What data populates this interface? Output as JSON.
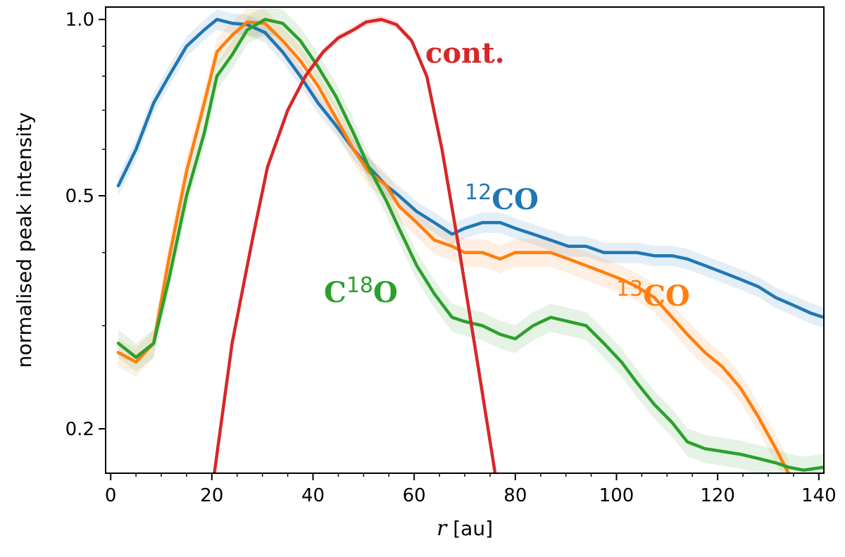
{
  "chart_data": {
    "type": "line",
    "title": "",
    "xlabel_var": "r",
    "xlabel_unit": " [au]",
    "ylabel": "normalised peak intensity",
    "xlim": [
      -1,
      141
    ],
    "ylim": [
      0.168,
      1.05
    ],
    "yscale": "log",
    "x_ticks": [
      0,
      20,
      40,
      60,
      80,
      100,
      120,
      140
    ],
    "x_tick_labels": [
      "0",
      "20",
      "40",
      "60",
      "80",
      "100",
      "120",
      "140"
    ],
    "y_ticks": [
      1.0,
      0.5,
      0.2
    ],
    "y_tick_labels": [
      "1.0",
      "0.5",
      "0.2"
    ],
    "y_minor_ticks": [
      0.9,
      0.8,
      0.7,
      0.6,
      0.4,
      0.3
    ],
    "grid": false,
    "series": [
      {
        "name": "12CO",
        "label_sup": "12",
        "label_main": "CO",
        "color": "#1f77b4",
        "band_width": 0.04,
        "x": [
          1.5,
          5,
          8.5,
          11.5,
          15,
          18.5,
          21,
          24,
          27,
          30.5,
          34,
          37.5,
          41,
          44.5,
          48,
          51,
          54.5,
          57,
          60.5,
          64,
          67.5,
          70,
          73.5,
          77,
          80,
          83.5,
          87,
          90.5,
          94,
          97.5,
          101,
          104,
          107.5,
          111,
          114,
          117.5,
          121,
          124.5,
          128,
          131.5,
          135,
          138.5,
          141
        ],
        "values": [
          0.52,
          0.6,
          0.72,
          0.8,
          0.9,
          0.96,
          1.0,
          0.985,
          0.98,
          0.95,
          0.88,
          0.8,
          0.72,
          0.66,
          0.6,
          0.56,
          0.52,
          0.5,
          0.47,
          0.45,
          0.43,
          0.44,
          0.45,
          0.45,
          0.44,
          0.43,
          0.42,
          0.41,
          0.41,
          0.4,
          0.4,
          0.4,
          0.395,
          0.395,
          0.39,
          0.38,
          0.37,
          0.36,
          0.35,
          0.335,
          0.325,
          0.315,
          0.31
        ]
      },
      {
        "name": "13CO",
        "label_sup": "13",
        "label_main": "CO",
        "color": "#ff7f0e",
        "band_width": 0.055,
        "x": [
          1.5,
          5,
          8.5,
          11.5,
          15,
          18.5,
          21,
          24,
          27,
          30.5,
          34,
          37.5,
          41,
          44.5,
          48,
          51,
          54.5,
          57,
          60.5,
          64,
          67.5,
          70,
          73.5,
          77,
          80,
          83.5,
          87,
          90.5,
          94,
          97.5,
          101,
          104,
          107.5,
          111,
          114,
          117.5,
          121,
          124.5,
          128,
          131.5,
          134
        ],
        "values": [
          0.27,
          0.26,
          0.28,
          0.39,
          0.55,
          0.72,
          0.88,
          0.94,
          0.99,
          0.985,
          0.92,
          0.85,
          0.77,
          0.68,
          0.6,
          0.55,
          0.52,
          0.48,
          0.45,
          0.42,
          0.41,
          0.4,
          0.4,
          0.39,
          0.4,
          0.4,
          0.4,
          0.39,
          0.38,
          0.37,
          0.36,
          0.35,
          0.335,
          0.31,
          0.29,
          0.27,
          0.255,
          0.235,
          0.21,
          0.185,
          0.168
        ]
      },
      {
        "name": "C18O",
        "label_pre": "C",
        "label_sup": "18",
        "label_post": "O",
        "color": "#2ca02c",
        "band_width": 0.055,
        "x": [
          1.5,
          5,
          8.5,
          11.5,
          15,
          18.5,
          21,
          24,
          27,
          30.5,
          34,
          37.5,
          41,
          44.5,
          48,
          51,
          54.5,
          57,
          60.5,
          64,
          67.5,
          70,
          73.5,
          77,
          80,
          83.5,
          87,
          90.5,
          94,
          97.5,
          101,
          104,
          107.5,
          111,
          114,
          117.5,
          121,
          124.5,
          128,
          131.5,
          134,
          137,
          141
        ],
        "values": [
          0.28,
          0.265,
          0.28,
          0.36,
          0.5,
          0.64,
          0.8,
          0.87,
          0.96,
          1.0,
          0.985,
          0.92,
          0.83,
          0.74,
          0.64,
          0.56,
          0.49,
          0.44,
          0.38,
          0.34,
          0.31,
          0.305,
          0.3,
          0.29,
          0.285,
          0.3,
          0.31,
          0.305,
          0.3,
          0.28,
          0.26,
          0.24,
          0.22,
          0.205,
          0.19,
          0.185,
          0.183,
          0.181,
          0.178,
          0.175,
          0.172,
          0.17,
          0.172
        ]
      },
      {
        "name": "cont.",
        "label_main": "cont.",
        "color": "#d62728",
        "band_width": 0.015,
        "x": [
          20.5,
          24,
          28,
          31,
          35,
          38.5,
          42,
          45,
          48,
          50.5,
          53.5,
          56.5,
          59.5,
          62.5,
          65.5,
          69,
          72.5,
          76
        ],
        "values": [
          0.168,
          0.28,
          0.42,
          0.56,
          0.7,
          0.8,
          0.88,
          0.93,
          0.96,
          0.99,
          1.0,
          0.98,
          0.92,
          0.8,
          0.6,
          0.4,
          0.26,
          0.168
        ]
      }
    ]
  }
}
